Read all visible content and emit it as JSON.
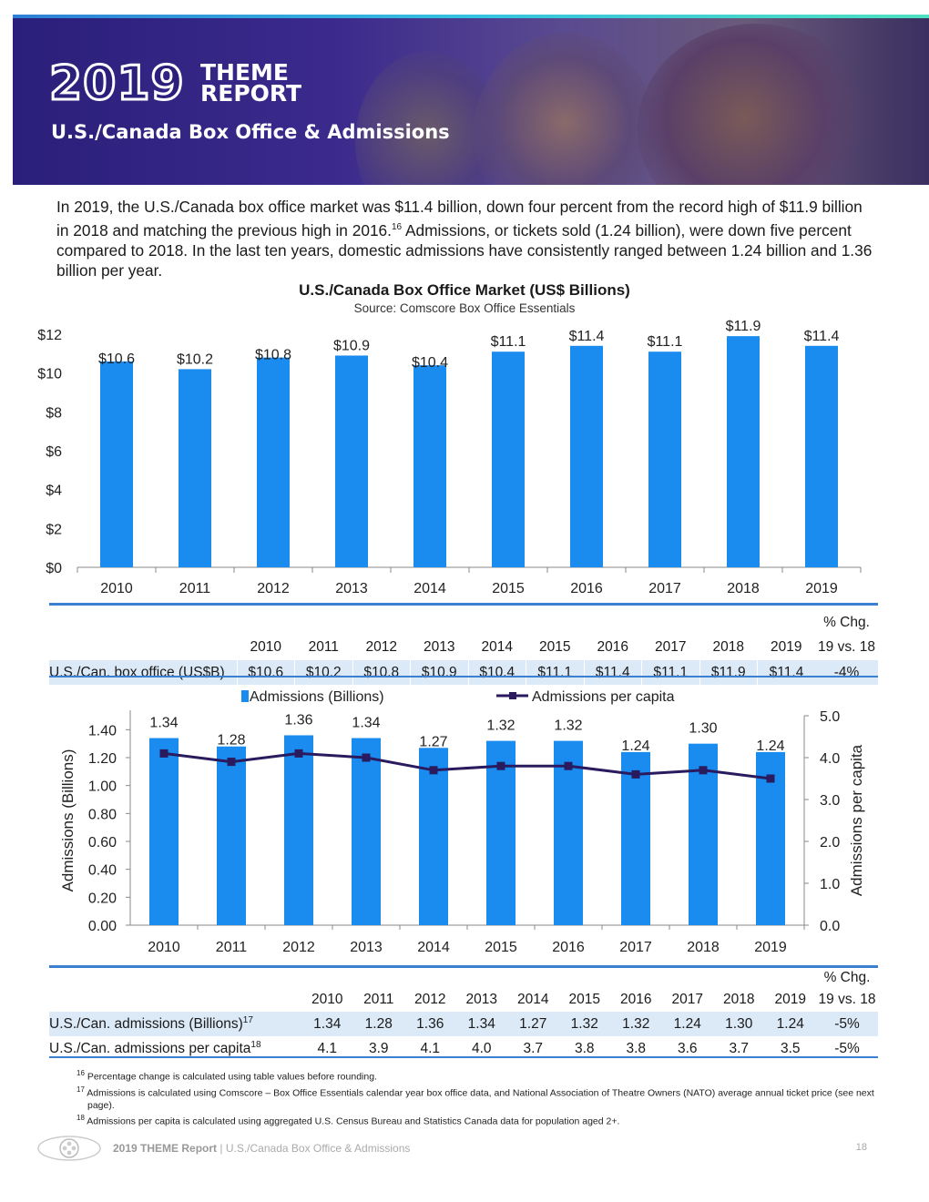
{
  "header": {
    "logo_year": "2019",
    "logo_line1": "THEME",
    "logo_line2": "REPORT",
    "title": "U.S./Canada Box Office & Admissions"
  },
  "intro": {
    "text_a": "In 2019, the U.S./Canada box office market was $11.4 billion, down four percent from the record high of $11.9 billion in 2018 and matching the previous high in 2016.",
    "sup": "16",
    "text_b": " Admissions, or tickets sold (1.24 billion), were down five percent compared to 2018. In the last ten years, domestic admissions have consistently ranged between 1.24 billion and 1.36 billion per year."
  },
  "chart_data": [
    {
      "type": "bar",
      "title": "U.S./Canada Box Office Market (US$ Billions)",
      "subtitle": "Source: Comscore Box Office Essentials",
      "categories": [
        "2010",
        "2011",
        "2012",
        "2013",
        "2014",
        "2015",
        "2016",
        "2017",
        "2018",
        "2019"
      ],
      "values": [
        10.6,
        10.2,
        10.8,
        10.9,
        10.4,
        11.1,
        11.4,
        11.1,
        11.9,
        11.4
      ],
      "data_labels": [
        "$10.6",
        "$10.2",
        "$10.8",
        "$10.9",
        "$10.4",
        "$11.1",
        "$11.4",
        "$11.1",
        "$11.9",
        "$11.4"
      ],
      "y_ticks": [
        "$0",
        "$2",
        "$4",
        "$6",
        "$8",
        "$10",
        "$12"
      ],
      "ylim": [
        0,
        12
      ],
      "color": "#1a8cf0",
      "grid": false
    },
    {
      "type": "bar",
      "categories": [
        "2010",
        "2011",
        "2012",
        "2013",
        "2014",
        "2015",
        "2016",
        "2017",
        "2018",
        "2019"
      ],
      "series": [
        {
          "name": "Admissions (Billions)",
          "type": "bar",
          "axis": "left",
          "values": [
            1.34,
            1.28,
            1.36,
            1.34,
            1.27,
            1.32,
            1.32,
            1.24,
            1.3,
            1.24
          ],
          "data_labels": [
            "1.34",
            "1.28",
            "1.36",
            "1.34",
            "1.27",
            "1.32",
            "1.32",
            "1.24",
            "1.30",
            "1.24"
          ],
          "color": "#1a8cf0"
        },
        {
          "name": "Admissions per capita",
          "type": "line",
          "axis": "right",
          "values": [
            4.1,
            3.9,
            4.1,
            4.0,
            3.7,
            3.8,
            3.8,
            3.6,
            3.7,
            3.5
          ],
          "color": "#2a1a5e"
        }
      ],
      "ylabel_left": "Admissions (Billions)",
      "ylabel_right": "Admissions per capita",
      "y_left_ticks": [
        "0.00",
        "0.20",
        "0.40",
        "0.60",
        "0.80",
        "1.00",
        "1.20",
        "1.40"
      ],
      "y_right_ticks": [
        "0.0",
        "1.0",
        "2.0",
        "3.0",
        "4.0",
        "5.0"
      ],
      "ylim_left": [
        0,
        1.5
      ],
      "ylim_right": [
        0,
        5
      ],
      "legend_position": "top",
      "grid": false
    }
  ],
  "table1": {
    "headers": [
      "2010",
      "2011",
      "2012",
      "2013",
      "2014",
      "2015",
      "2016",
      "2017",
      "2018",
      "2019"
    ],
    "chg_header_1": "% Chg.",
    "chg_header_2": "19 vs. 18",
    "rows": [
      {
        "label": "U.S./Can. box office (US$B)",
        "cells": [
          "$10.6",
          "$10.2",
          "$10.8",
          "$10.9",
          "$10.4",
          "$11.1",
          "$11.4",
          "$11.1",
          "$11.9",
          "$11.4"
        ],
        "chg": "-4%"
      }
    ]
  },
  "table2": {
    "headers": [
      "2010",
      "2011",
      "2012",
      "2013",
      "2014",
      "2015",
      "2016",
      "2017",
      "2018",
      "2019"
    ],
    "chg_header_1": "% Chg.",
    "chg_header_2": "19 vs. 18",
    "rows": [
      {
        "label": "U.S./Can. admissions (Billions)",
        "sup": "17",
        "cells": [
          "1.34",
          "1.28",
          "1.36",
          "1.34",
          "1.27",
          "1.32",
          "1.32",
          "1.24",
          "1.30",
          "1.24"
        ],
        "chg": "-5%"
      },
      {
        "label": "U.S./Can. admissions per capita",
        "sup": "18",
        "cells": [
          "4.1",
          "3.9",
          "4.1",
          "4.0",
          "3.7",
          "3.8",
          "3.8",
          "3.6",
          "3.7",
          "3.5"
        ],
        "chg": "-5%"
      }
    ]
  },
  "footnotes": [
    {
      "num": "16",
      "text": "Percentage change is calculated using table values before rounding."
    },
    {
      "num": "17",
      "text": "Admissions is calculated using Comscore – Box Office Essentials calendar year box office data, and National Association of Theatre Owners (NATO) average annual ticket price (see next page)."
    },
    {
      "num": "18",
      "text": "Admissions per capita is calculated using aggregated U.S. Census Bureau and Statistics Canada data for population aged 2+."
    }
  ],
  "footer": {
    "report": "2019 THEME Report",
    "separator": "|",
    "section": "U.S./Canada Box Office & Admissions",
    "page": "18"
  },
  "colors": {
    "header_bg": "#2a1f7a",
    "bar": "#1a8cf0",
    "line": "#2a1a5e",
    "table_band": "#dce9f7",
    "table_rule": "#3a7fd0"
  }
}
